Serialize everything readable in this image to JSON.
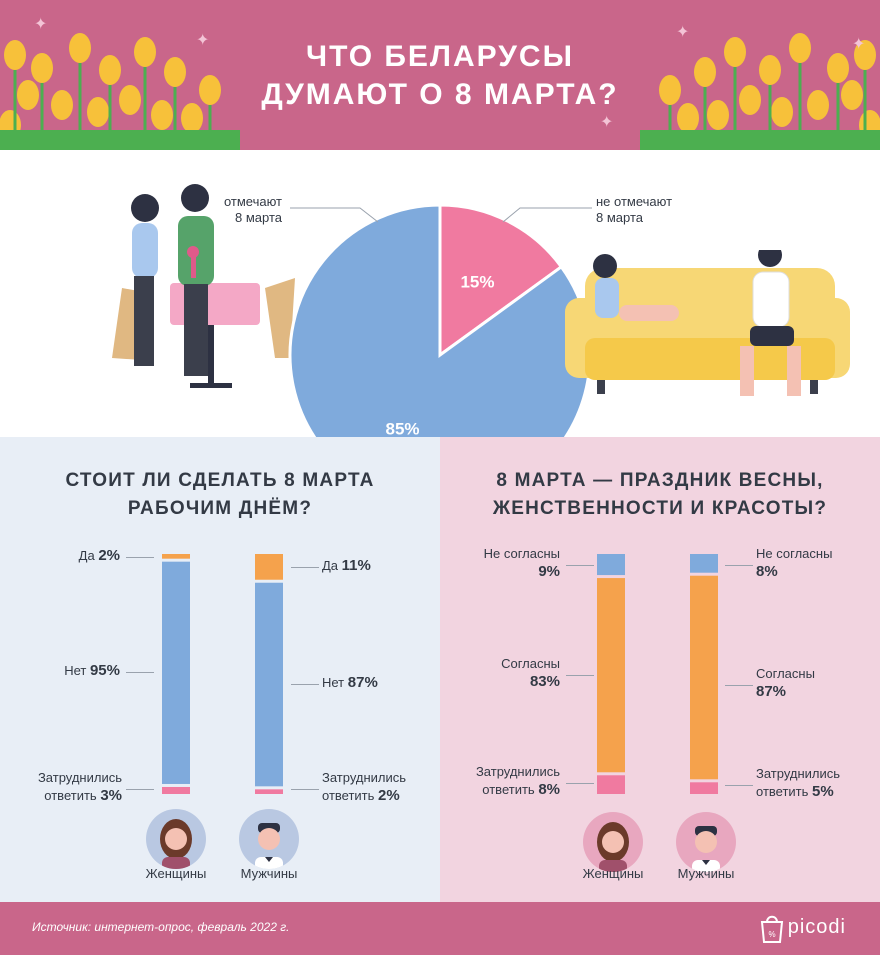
{
  "header": {
    "title_line1": "ЧТО БЕЛАРУСЫ",
    "title_line2": "ДУМАЮТ О 8 МАРТА?"
  },
  "pie": {
    "label_celebrate": "отмечают\n8 марта",
    "label_not": "не отмечают\n8 марта"
  },
  "chart_data": [
    {
      "type": "pie",
      "title": "",
      "slices": [
        {
          "label": "не отмечают 8 марта",
          "value": 15,
          "text": "15%",
          "color": "#f07aa0"
        },
        {
          "label": "отмечают 8 марта",
          "value": 85,
          "text": "85%",
          "color": "#7faadc"
        }
      ]
    },
    {
      "type": "bar",
      "title": "СТОИТ ЛИ СДЕЛАТЬ 8 МАРТА РАБОЧИМ ДНЁМ?",
      "stacked": true,
      "categories": [
        "Женщины",
        "Мужчины"
      ],
      "series": [
        {
          "name": "Да",
          "values": [
            2,
            11
          ],
          "color": "#f5a24c",
          "text": [
            "2%",
            "11%"
          ]
        },
        {
          "name": "Нет",
          "values": [
            95,
            87
          ],
          "color": "#7faadc",
          "text": [
            "95%",
            "87%"
          ]
        },
        {
          "name": "Затруднились ответить",
          "values": [
            3,
            2
          ],
          "color": "#f07aa0",
          "text": [
            "3%",
            "2%"
          ]
        }
      ]
    },
    {
      "type": "bar",
      "title": "8 МАРТА — ПРАЗДНИК ВЕСНЫ, ЖЕНСТВЕННОСТИ И КРАСОТЫ?",
      "stacked": true,
      "categories": [
        "Женщины",
        "Мужчины"
      ],
      "series": [
        {
          "name": "Не согласны",
          "values": [
            9,
            8
          ],
          "color": "#7faadc",
          "text": [
            "9%",
            "8%"
          ]
        },
        {
          "name": "Согласны",
          "values": [
            83,
            87
          ],
          "color": "#f5a24c",
          "text": [
            "83%",
            "87%"
          ]
        },
        {
          "name": "Затруднились ответить",
          "values": [
            8,
            5
          ],
          "color": "#f07aa0",
          "text": [
            "8%",
            "5%"
          ]
        }
      ]
    }
  ],
  "left_panel": {
    "title_line1": "СТОИТ ЛИ СДЕЛАТЬ 8 МАРТА",
    "title_line2": "РАБОЧИМ ДНЁМ?",
    "women": {
      "yes_label": "Да",
      "no_label": "Нет",
      "hard_label1": "Затруднились",
      "hard_label2": "ответить"
    },
    "men": {
      "yes_label": "Да",
      "no_label": "Нет",
      "hard_label1": "Затруднились",
      "hard_label2": "ответить"
    },
    "women_name": "Женщины",
    "men_name": "Мужчины"
  },
  "right_panel": {
    "title_line1": "8 МАРТА — ПРАЗДНИК ВЕСНЫ,",
    "title_line2": "ЖЕНСТВЕННОСТИ И КРАСОТЫ?",
    "disagree_label1": "Не",
    "disagree_label2": "согласны",
    "agree_label": "Согласны",
    "hard_label1": "Затруднились",
    "hard_label2": "ответить",
    "women_name": "Женщины",
    "men_name": "Мужчины"
  },
  "footer": {
    "source": "Источник: интернет-опрос, февраль 2022 г.",
    "brand": "picodi"
  },
  "colors": {
    "header": "#c9668a",
    "blue": "#7faadc",
    "orange": "#f5a24c",
    "pink": "#f07aa0",
    "left_bg": "#e8eef6",
    "right_bg": "#f2d4e0"
  }
}
